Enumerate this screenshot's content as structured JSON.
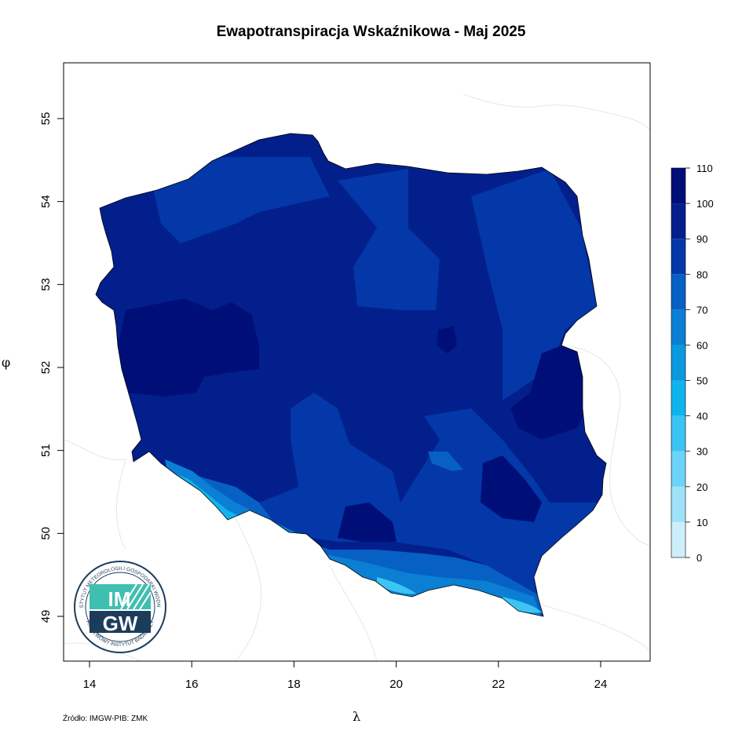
{
  "title": "Ewapotranspiracja Wskaźnikowa - Maj 2025",
  "source": "Źródło: IMGW-PIB: ZMK",
  "axes": {
    "xlabel": "λ",
    "ylabel": "φ",
    "x_ticks": [
      14,
      16,
      18,
      20,
      22,
      24
    ],
    "y_ticks": [
      49,
      50,
      51,
      52,
      53,
      54,
      55
    ],
    "x_range": [
      13.5,
      25.0
    ],
    "y_range": [
      48.5,
      55.7
    ]
  },
  "legend": {
    "placement": "right",
    "values": [
      0,
      10,
      20,
      30,
      40,
      50,
      60,
      70,
      80,
      90,
      100,
      110
    ],
    "colors": [
      "#ffffff",
      "#cdeffb",
      "#9fe2fa",
      "#6cd4f8",
      "#3cc4f4",
      "#0fb4ef",
      "#0a98df",
      "#0a7fd3",
      "#0760c4",
      "#0437a7",
      "#021f8c",
      "#000f78"
    ]
  },
  "logo": {
    "text_main_1": "IM",
    "text_main_2": "GW",
    "ring_top": "INSTYTUT METEOROLOGII I GOSPODARKI WODNEJ",
    "ring_bottom": "PAŃSTWOWY INSTYTUT BADAWCZY"
  }
}
